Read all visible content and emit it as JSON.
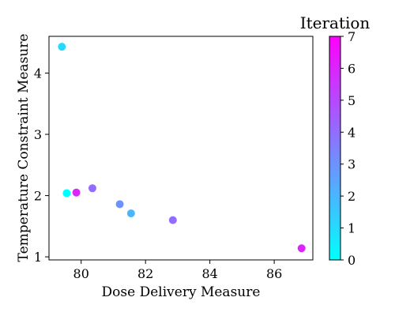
{
  "chart_data": {
    "type": "scatter",
    "title": "",
    "xlabel": "Dose Delivery Measure",
    "ylabel": "Temperature Constraint Measure",
    "xlim": [
      79.0,
      87.2
    ],
    "ylim": [
      0.95,
      4.6
    ],
    "xticks": [
      80,
      82,
      84,
      86
    ],
    "yticks": [
      1,
      2,
      3,
      4
    ],
    "grid": false,
    "colormap": "cool",
    "colorbar": {
      "label": "Iteration",
      "range": [
        0,
        7
      ],
      "ticks": [
        0,
        1,
        2,
        3,
        4,
        5,
        6,
        7
      ]
    },
    "points": [
      {
        "x": 79.4,
        "y": 4.43,
        "iteration": 1
      },
      {
        "x": 79.55,
        "y": 2.04,
        "iteration": 0
      },
      {
        "x": 79.85,
        "y": 2.05,
        "iteration": 6
      },
      {
        "x": 80.35,
        "y": 2.12,
        "iteration": 4
      },
      {
        "x": 81.2,
        "y": 1.86,
        "iteration": 3
      },
      {
        "x": 81.55,
        "y": 1.71,
        "iteration": 2
      },
      {
        "x": 82.85,
        "y": 1.6,
        "iteration": 4
      },
      {
        "x": 86.85,
        "y": 1.14,
        "iteration": 6
      }
    ]
  }
}
